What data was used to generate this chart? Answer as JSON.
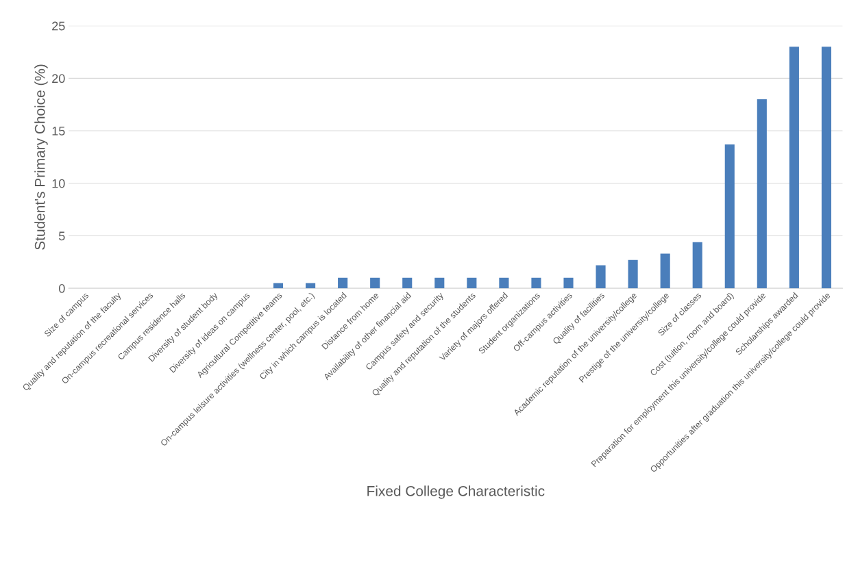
{
  "chart_data": {
    "type": "bar",
    "xlabel": "Fixed College Characteristic",
    "ylabel": "Student's Primary Choice (%)",
    "categories": [
      "Size of campus",
      "Quality and reputation of the faculty",
      "On-campus recreational services",
      "Campus residence halls",
      "Diversity of student body",
      "Diversity of ideas on campus",
      "Agricultural Competitive teams",
      "On-campus leisure activities (wellness center, pool, etc.)",
      "City in which campus is located",
      "Distance from home",
      "Availability of other financial aid",
      "Campus safety and security",
      "Quality and reputation of the students",
      "Variety of majors offered",
      "Student organizations",
      "Off-campus activities",
      "Quality of facilities",
      "Academic reputation of the university/college",
      "Prestige of the university/college",
      "Size of classes",
      "Cost (tuition, room and board)",
      "Preparation for employment this university/college could provide",
      "Scholarships awarded",
      "Opportunities after graduation this university/college could provide"
    ],
    "values": [
      0,
      0,
      0,
      0,
      0,
      0,
      0.5,
      0.5,
      1,
      1,
      1,
      1,
      1,
      1,
      1,
      1,
      2.2,
      2.7,
      3.3,
      4.4,
      13.7,
      18,
      23,
      23
    ],
    "color": "#4a7ebb",
    "ylim": [
      0,
      25
    ],
    "yticks": [
      0,
      5,
      10,
      15,
      20,
      25
    ],
    "grid": "y",
    "legend": false
  }
}
